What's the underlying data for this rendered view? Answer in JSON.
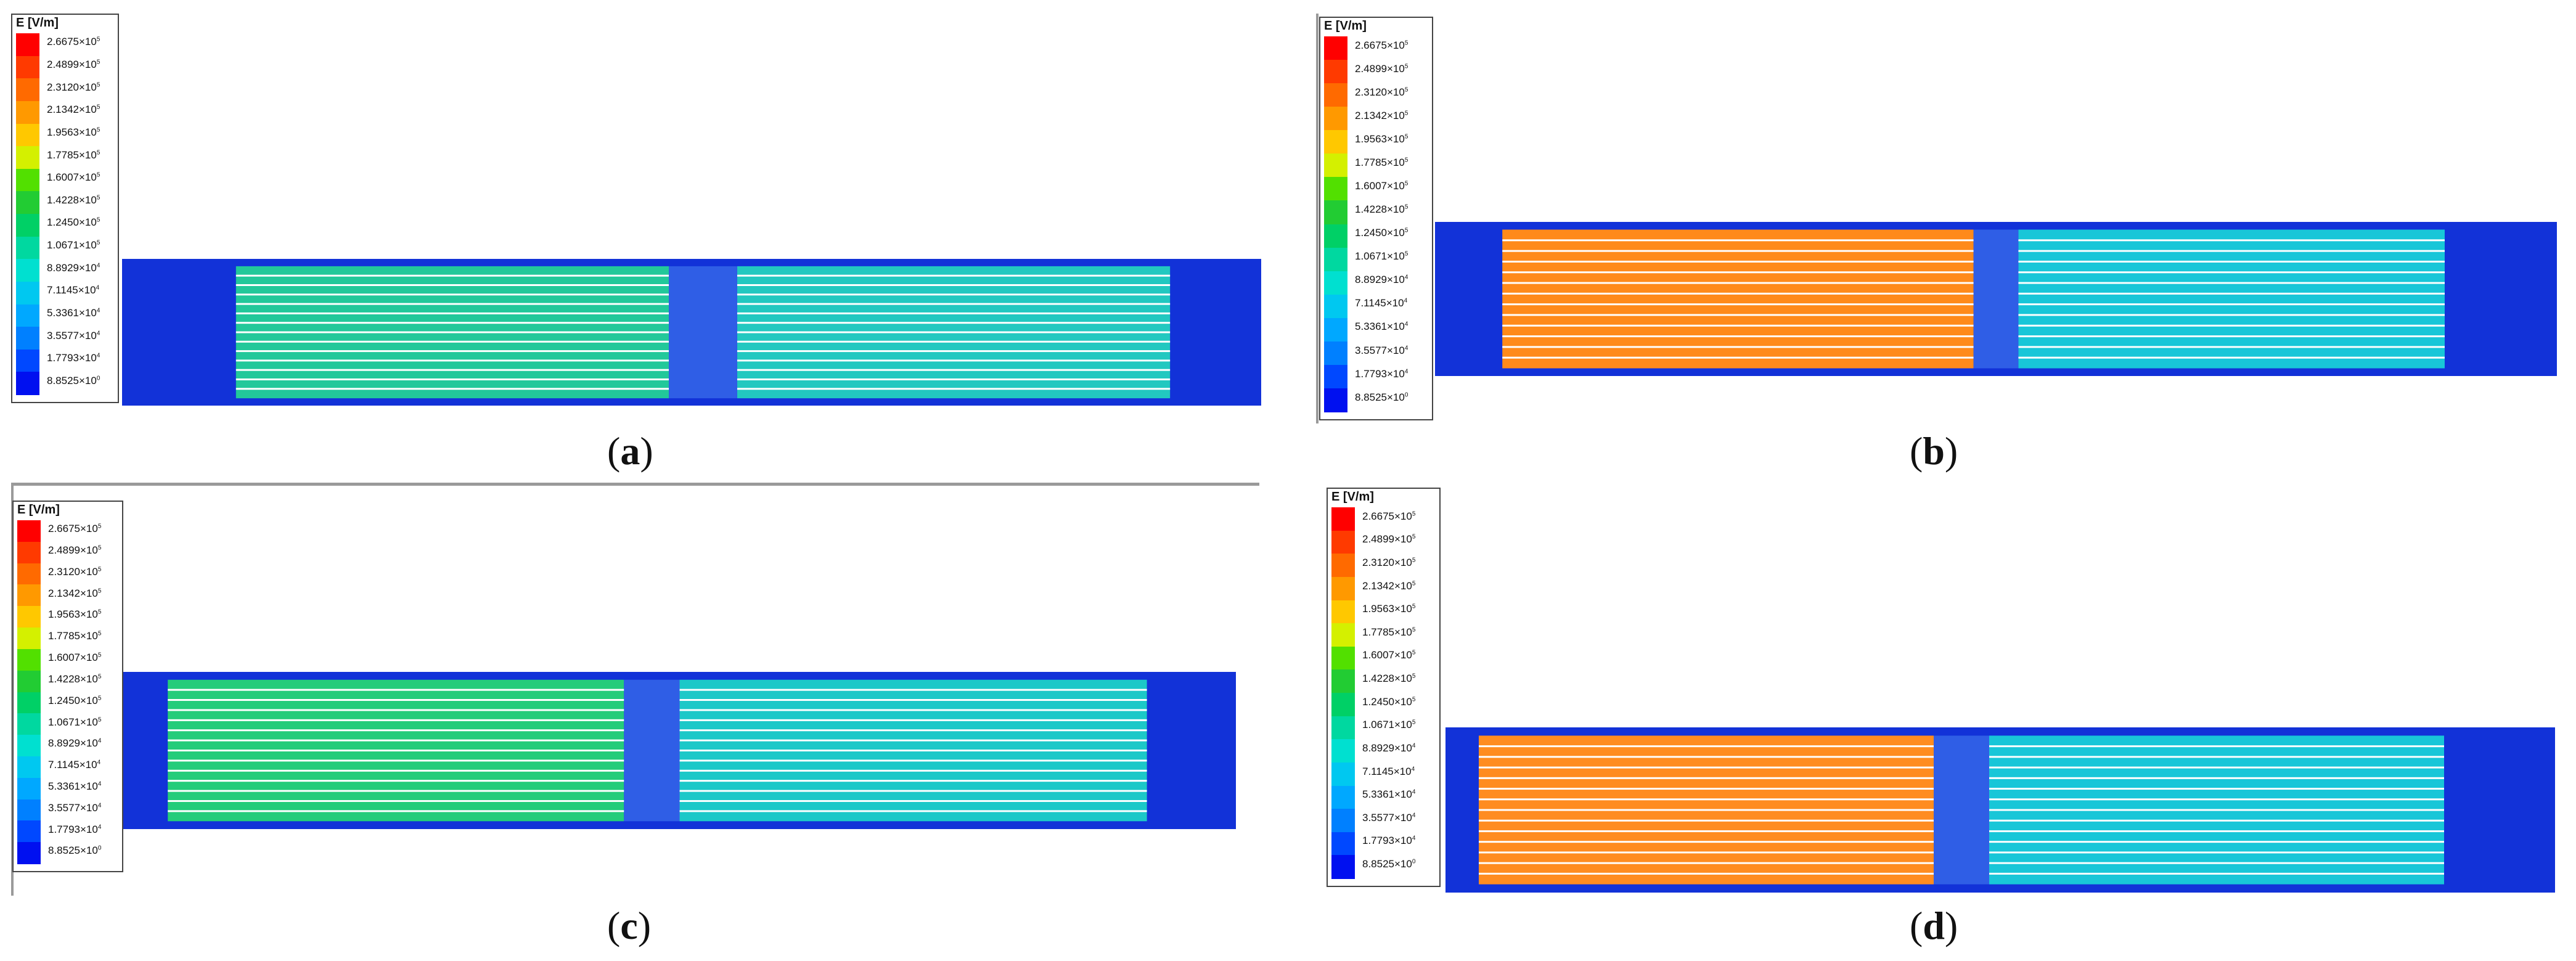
{
  "legend": {
    "title": "E [V/m]",
    "labels": [
      "2.6675×10",
      "2.4899×10",
      "2.3120×10",
      "2.1342×10",
      "1.9563×10",
      "1.7785×10",
      "1.6007×10",
      "1.4228×10",
      "1.2450×10",
      "1.0671×10",
      "8.8929×10",
      "7.1145×10",
      "5.3361×10",
      "3.5577×10",
      "1.7793×10",
      "8.8525×10"
    ],
    "exponents": [
      "5",
      "5",
      "5",
      "5",
      "5",
      "5",
      "5",
      "5",
      "5",
      "5",
      "4",
      "4",
      "4",
      "4",
      "4",
      "0"
    ],
    "colors": [
      "#ff0000",
      "#ff3a00",
      "#ff6a00",
      "#ff9900",
      "#ffc800",
      "#d4f000",
      "#52e000",
      "#22cc33",
      "#00d066",
      "#00d8a0",
      "#00e0d0",
      "#00c8f0",
      "#00a8ff",
      "#0080ff",
      "#0048ff",
      "#0010f0"
    ]
  },
  "panels": [
    {
      "id": "a",
      "caption_open": "(",
      "caption_letter": "a",
      "caption_close": ")"
    },
    {
      "id": "b",
      "caption_open": "(",
      "caption_letter": "b",
      "caption_close": ")"
    },
    {
      "id": "c",
      "caption_open": "(",
      "caption_letter": "c",
      "caption_close": ")"
    },
    {
      "id": "d",
      "caption_open": "(",
      "caption_letter": "d",
      "caption_close": ")"
    }
  ]
}
